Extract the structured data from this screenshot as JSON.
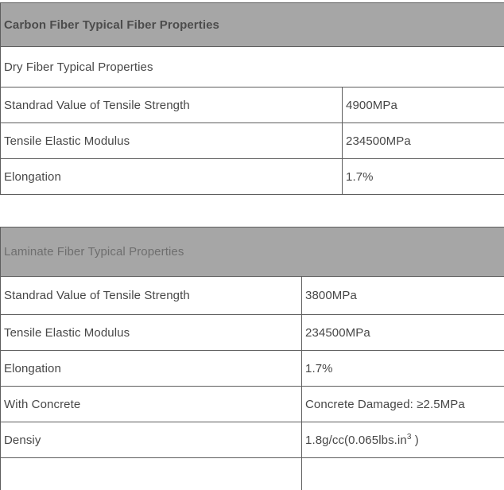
{
  "colors": {
    "header_background": "#a6a6a6",
    "border": "#5e5e5e",
    "body_text": "#474747",
    "table1_header_text": "#4c4c4c",
    "table2_header_text": "#6e6e6e",
    "page_background": "#ffffff"
  },
  "table1": {
    "title": "Carbon Fiber Typical Fiber Properties",
    "section": "Dry Fiber Typical Properties",
    "rows": [
      {
        "label": "Standrad Value of Tensile Strength",
        "value": "4900MPa"
      },
      {
        "label": "Tensile Elastic Modulus",
        "value": "234500MPa"
      },
      {
        "label": "Elongation",
        "value": "1.7%"
      }
    ]
  },
  "table2": {
    "title": "Laminate Fiber Typical Properties",
    "rows": [
      {
        "label": "Standrad Value of Tensile Strength",
        "value": "3800MPa"
      },
      {
        "label": "Tensile Elastic Modulus",
        "value": "234500MPa"
      },
      {
        "label": "Elongation",
        "value": "1.7%"
      },
      {
        "label": "With Concrete",
        "value": "Concrete Damaged: ≥2.5MPa"
      },
      {
        "label": "Densiy",
        "value_prefix": "1.8g/cc(0.065lbs.in",
        "value_sup": "3",
        "value_suffix": " )"
      }
    ]
  }
}
